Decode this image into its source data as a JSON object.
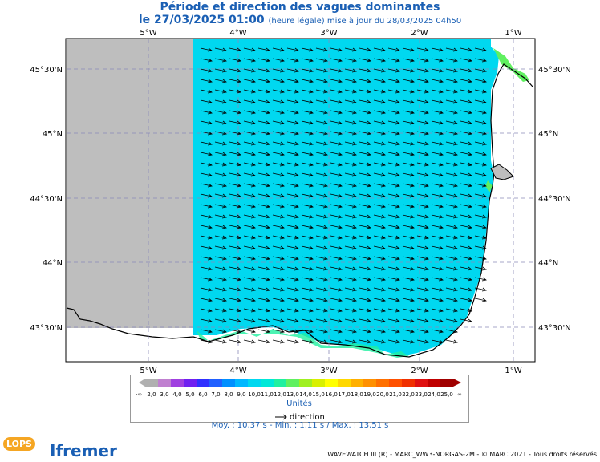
{
  "title": "Période et direction des vagues dominantes",
  "subtitle_date": "le 27/03/2025 01:00",
  "subtitle_note": "(heure légale) mise à jour du 28/03/2025 04h50",
  "lon_labels": [
    "5°W",
    "4°W",
    "3°W",
    "2°W",
    "1°W"
  ],
  "lat_labels": [
    "45°30'N",
    "45°N",
    "44°30'N",
    "44°N",
    "43°30'N"
  ],
  "legend": {
    "values": [
      "-∞",
      "2,0",
      "3,0",
      "4,0",
      "5,0",
      "6,0",
      "7,0",
      "8,0",
      "9,0",
      "10,0",
      "11,0",
      "12,0",
      "13,0",
      "14,0",
      "15,0",
      "16,0",
      "17,0",
      "18,0",
      "19,0",
      "20,0",
      "21,0",
      "22,0",
      "23,0",
      "24,0",
      "25,0",
      "∞"
    ],
    "colors": [
      "#b0b0b0",
      "#c080d0",
      "#a040e0",
      "#7020f0",
      "#3030ff",
      "#2060ff",
      "#0090ff",
      "#00b8ff",
      "#00d8f0",
      "#00e8d8",
      "#20f0a0",
      "#60f060",
      "#a0f020",
      "#d8f000",
      "#ffff00",
      "#ffd800",
      "#ffb000",
      "#ff9000",
      "#ff7000",
      "#ff5000",
      "#f03000",
      "#e01010",
      "#c00000",
      "#a00000"
    ],
    "unit": "Unités",
    "direction_label": "direction"
  },
  "stats": "Moy. : 10,37 s   -   Min. : 1,11 s / Max. : 13,51 s",
  "footer": "WAVEWATCH III (R) - MARC_WW3-NORGAS-2M - © MARC 2021 - Tous droits réservés",
  "logos": {
    "ifremer": "Ifremer",
    "lops": "LOPS"
  },
  "field_color": "#00d8f0",
  "land_mask_color": "#bebebe"
}
